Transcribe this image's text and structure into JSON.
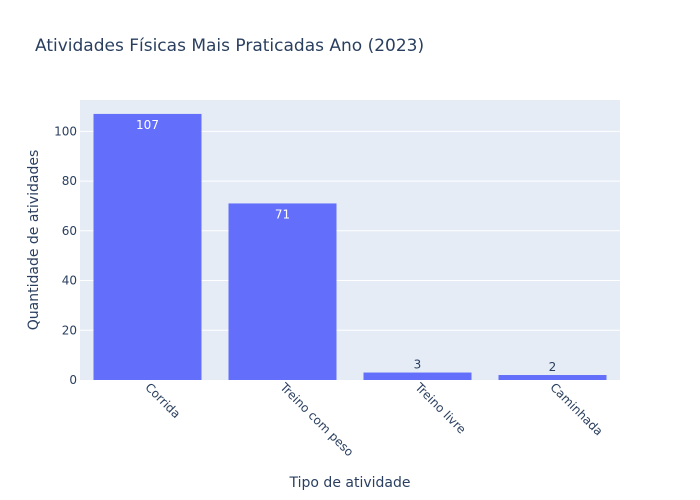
{
  "chart_data": {
    "type": "bar",
    "title": "Atividades Físicas Mais Praticadas Ano (2023)",
    "xlabel": "Tipo de atividade",
    "ylabel": "Quantidade de atividades",
    "categories": [
      "Corrida",
      "Treino com peso",
      "Treino livre",
      "Caminhada"
    ],
    "values": [
      107,
      71,
      3,
      2
    ],
    "data_labels": [
      "107",
      "71",
      "3",
      "2"
    ],
    "ylim": [
      0,
      112.6
    ],
    "yticks": [
      0,
      20,
      40,
      60,
      80,
      100
    ],
    "grid": true,
    "legend": "none",
    "colors": {
      "bar": "#636efa",
      "plot_bg": "#e5ecf6",
      "grid": "#ffffff",
      "text": "#2a3f5f"
    }
  }
}
